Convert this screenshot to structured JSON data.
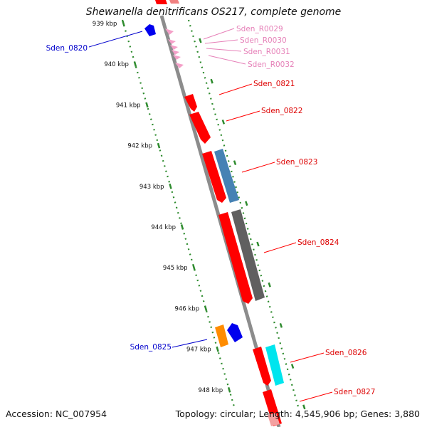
{
  "title": "Shewanella denitrificans OS217, complete genome",
  "accession_label": "Accession: NC_007954",
  "summary_label": "Topology: circular; Length: 4,545,906 bp; Genes: 3,880",
  "colors": {
    "backbone": "#8c8c8c",
    "ruler": "#2e8b2e",
    "gene_red": "#ff0000",
    "rna_pink": "#f4a0c8",
    "gene_blue_label": "#0000cc",
    "rna_label": "#e680b8",
    "steelblue": "#4682b4",
    "gray": "#606060",
    "cyan": "#00e5ee",
    "orange": "#ff8c00",
    "blue": "#0000ff"
  },
  "ruler_ticks": [
    "939 kbp",
    "940 kbp",
    "941 kbp",
    "942 kbp",
    "943 kbp",
    "944 kbp",
    "945 kbp",
    "946 kbp",
    "947 kbp",
    "948 kbp"
  ],
  "labels": [
    {
      "text": "Sden_0820",
      "kind": "gene_reverse"
    },
    {
      "text": "Sden_R0029",
      "kind": "rna"
    },
    {
      "text": "Sden_R0030",
      "kind": "rna"
    },
    {
      "text": "Sden_R0031",
      "kind": "rna"
    },
    {
      "text": "Sden_R0032",
      "kind": "rna"
    },
    {
      "text": "Sden_0821",
      "kind": "gene_forward"
    },
    {
      "text": "Sden_0822",
      "kind": "gene_forward"
    },
    {
      "text": "Sden_0823",
      "kind": "gene_forward"
    },
    {
      "text": "Sden_0824",
      "kind": "gene_forward"
    },
    {
      "text": "Sden_0825",
      "kind": "gene_reverse"
    },
    {
      "text": "Sden_0826",
      "kind": "gene_forward"
    },
    {
      "text": "Sden_0827",
      "kind": "gene_forward"
    }
  ]
}
